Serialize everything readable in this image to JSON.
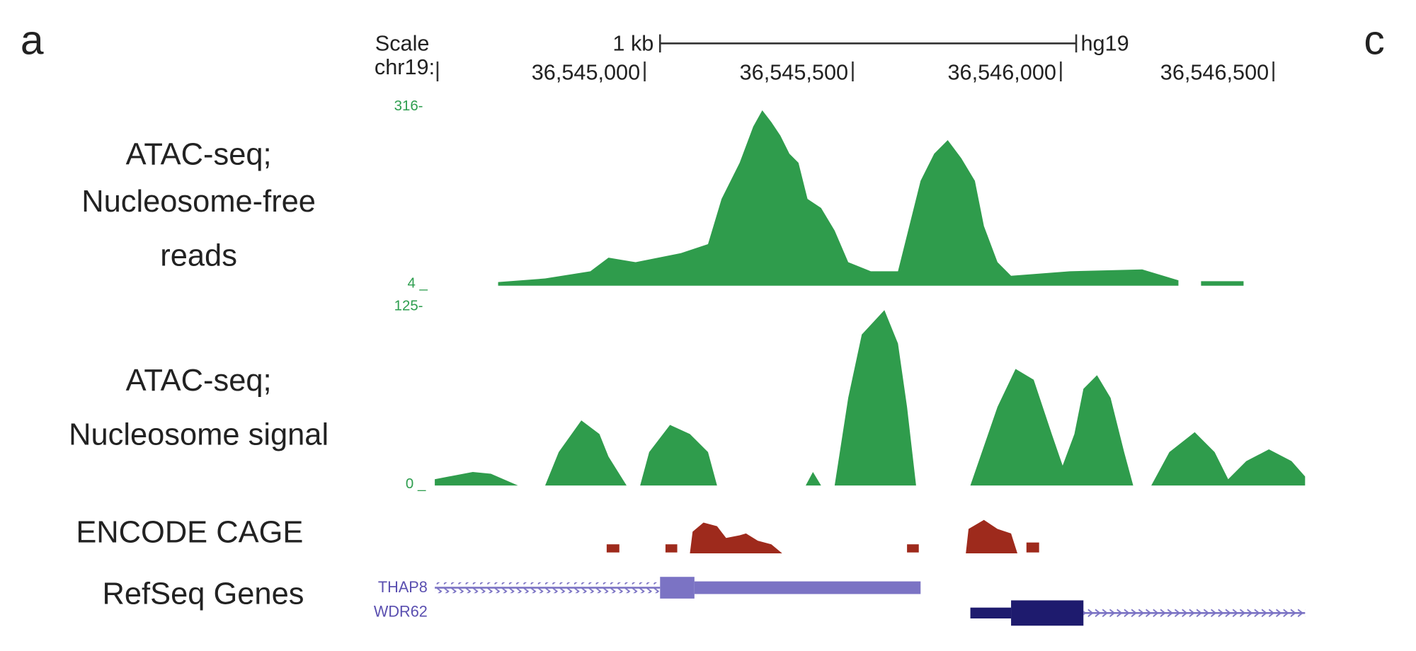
{
  "panel_labels": [
    "a",
    "c"
  ],
  "ruler": {
    "scale": "Scale",
    "chrom": "chr19:",
    "size": "1 kb",
    "assembly": "hg19",
    "positions": [
      "36,545,000",
      "36,545,500",
      "36,546,000",
      "36,546,500"
    ]
  },
  "tracks": [
    {
      "label": [
        "ATAC-seq;",
        "Nucleosome-free",
        "reads"
      ],
      "max": "316-",
      "min": "4 _"
    },
    {
      "label": [
        "ATAC-seq;",
        "Nucleosome signal"
      ],
      "max": "125-",
      "min": "0 _"
    },
    {
      "label": [
        "ENCODE CAGE"
      ]
    },
    {
      "label": [
        "RefSeq Genes"
      ],
      "genes": [
        "THAP8",
        "WDR62"
      ]
    }
  ]
}
